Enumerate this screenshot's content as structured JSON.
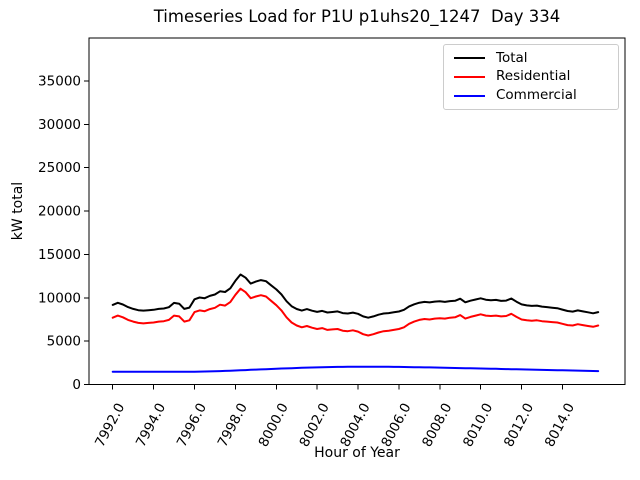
{
  "chart_data": {
    "type": "line",
    "title": "Timeseries Load for P1U p1uhs20_1247  Day 334",
    "xlabel": "Hour of Year",
    "ylabel": "kW total",
    "grid": false,
    "legend_position": "upper right",
    "xlim": [
      7990.84,
      8017.06
    ],
    "ylim": [
      0,
      39965
    ],
    "xticks": [
      7992,
      7994,
      7996,
      7998,
      8000,
      8002,
      8004,
      8006,
      8008,
      8010,
      8012,
      8014
    ],
    "xtick_labels": [
      "7992.0",
      "7994.0",
      "7996.0",
      "7998.0",
      "8000.0",
      "8002.0",
      "8004.0",
      "8006.0",
      "8008.0",
      "8010.0",
      "8012.0",
      "8014.0"
    ],
    "yticks": [
      0,
      5000,
      10000,
      15000,
      20000,
      25000,
      30000,
      35000
    ],
    "ytick_labels": [
      "0",
      "5000",
      "10000",
      "15000",
      "20000",
      "25000",
      "30000",
      "35000"
    ],
    "x": [
      7992.0,
      7992.25,
      7992.5,
      7992.75,
      7993.0,
      7993.25,
      7993.5,
      7993.75,
      7994.0,
      7994.25,
      7994.5,
      7994.75,
      7995.0,
      7995.25,
      7995.5,
      7995.75,
      7996.0,
      7996.25,
      7996.5,
      7996.75,
      7997.0,
      7997.25,
      7997.5,
      7997.75,
      7998.0,
      7998.25,
      7998.5,
      7998.75,
      7999.0,
      7999.25,
      7999.5,
      7999.75,
      8000.0,
      8000.25,
      8000.5,
      8000.75,
      8001.0,
      8001.25,
      8001.5,
      8001.75,
      8002.0,
      8002.25,
      8002.5,
      8002.75,
      8003.0,
      8003.25,
      8003.5,
      8003.75,
      8004.0,
      8004.25,
      8004.5,
      8004.75,
      8005.0,
      8005.25,
      8005.5,
      8005.75,
      8006.0,
      8006.25,
      8006.5,
      8006.75,
      8007.0,
      8007.25,
      8007.5,
      8007.75,
      8008.0,
      8008.25,
      8008.5,
      8008.75,
      8009.0,
      8009.25,
      8009.5,
      8009.75,
      8010.0,
      8010.25,
      8010.5,
      8010.75,
      8011.0,
      8011.25,
      8011.5,
      8011.75,
      8012.0,
      8012.25,
      8012.5,
      8012.75,
      8013.0,
      8013.25,
      8013.5,
      8013.75,
      8014.0,
      8014.25,
      8014.5,
      8014.75,
      8015.0,
      8015.25,
      8015.5,
      8015.75
    ],
    "series": [
      {
        "name": "Total",
        "color": "#000000",
        "values": [
          9180,
          9428,
          9226,
          8924,
          8722,
          8570,
          8518,
          8566,
          8615,
          8714,
          8763,
          8913,
          9413,
          9314,
          8716,
          8870,
          9828,
          10038,
          9950,
          10215,
          10382,
          10750,
          10670,
          11092,
          11965,
          12690,
          12315,
          11640,
          11865,
          12040,
          11915,
          11440,
          10965,
          10390,
          9612,
          9034,
          8705,
          8525,
          8695,
          8512,
          8378,
          8492,
          8305,
          8366,
          8426,
          8234,
          8191,
          8296,
          8150,
          7852,
          7702,
          7850,
          8047,
          8193,
          8238,
          8332,
          8425,
          8617,
          9008,
          9249,
          9439,
          9528,
          9467,
          9556,
          9594,
          9532,
          9620,
          9658,
          9896,
          9484,
          9671,
          9808,
          9945,
          9782,
          9719,
          9756,
          9643,
          9680,
          9917,
          9554,
          9241,
          9128,
          9065,
          9102,
          8989,
          8926,
          8863,
          8800,
          8637,
          8474,
          8411,
          8548,
          8435,
          8322,
          8210,
          8350
        ]
      },
      {
        "name": "Residential",
        "color": "#ff0000",
        "values": [
          7700,
          7950,
          7750,
          7450,
          7250,
          7100,
          7050,
          7100,
          7150,
          7250,
          7300,
          7450,
          7950,
          7850,
          7250,
          7400,
          8350,
          8550,
          8450,
          8700,
          8850,
          9200,
          9100,
          9500,
          10350,
          11050,
          10650,
          9950,
          10150,
          10300,
          10150,
          9650,
          9150,
          8550,
          7750,
          7150,
          6800,
          6600,
          6750,
          6550,
          6400,
          6500,
          6300,
          6350,
          6400,
          6200,
          6150,
          6250,
          6100,
          5800,
          5650,
          5800,
          6000,
          6150,
          6200,
          6300,
          6400,
          6600,
          7000,
          7250,
          7450,
          7550,
          7500,
          7600,
          7650,
          7600,
          7700,
          7750,
          8000,
          7600,
          7800,
          7950,
          8100,
          7950,
          7900,
          7950,
          7850,
          7900,
          8150,
          7800,
          7500,
          7400,
          7350,
          7400,
          7300,
          7250,
          7200,
          7150,
          7000,
          6850,
          6800,
          6950,
          6850,
          6750,
          6650,
          6800
        ]
      },
      {
        "name": "Commercial",
        "color": "#0000ff",
        "values": [
          1480,
          1478,
          1476,
          1474,
          1472,
          1470,
          1468,
          1466,
          1465,
          1464,
          1463,
          1463,
          1463,
          1464,
          1466,
          1470,
          1478,
          1488,
          1500,
          1515,
          1532,
          1550,
          1570,
          1592,
          1615,
          1640,
          1665,
          1690,
          1715,
          1740,
          1765,
          1790,
          1815,
          1840,
          1862,
          1884,
          1905,
          1925,
          1945,
          1962,
          1978,
          1992,
          2005,
          2016,
          2026,
          2034,
          2041,
          2046,
          2050,
          2052,
          2052,
          2050,
          2047,
          2043,
          2038,
          2032,
          2025,
          2017,
          2008,
          1999,
          1989,
          1978,
          1967,
          1956,
          1944,
          1932,
          1920,
          1908,
          1896,
          1884,
          1871,
          1858,
          1845,
          1832,
          1819,
          1806,
          1793,
          1780,
          1767,
          1754,
          1741,
          1728,
          1715,
          1702,
          1689,
          1676,
          1663,
          1650,
          1637,
          1624,
          1611,
          1598,
          1585,
          1572,
          1560,
          1550
        ]
      }
    ]
  }
}
